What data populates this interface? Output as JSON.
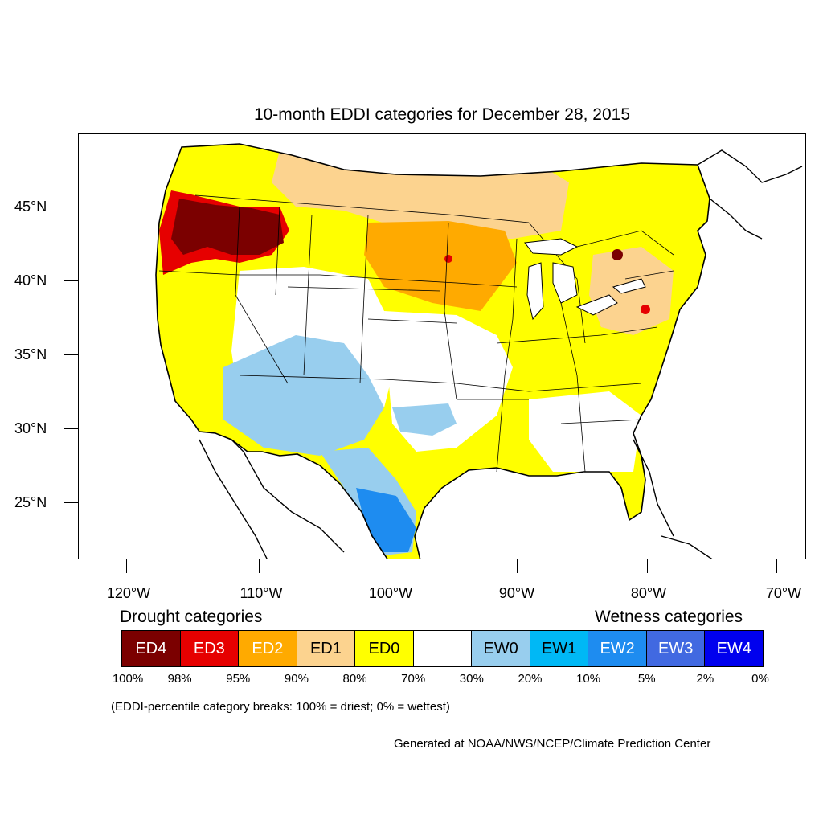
{
  "title": "10-month EDDI categories for December 28, 2015",
  "lat_labels": [
    "45°N",
    "40°N",
    "35°N",
    "30°N",
    "25°N"
  ],
  "lon_labels": [
    "120°W",
    "110°W",
    "100°W",
    "90°W",
    "80°W",
    "70°W"
  ],
  "legend": {
    "drought_heading": "Drought categories",
    "wetness_heading": "Wetness categories",
    "categories": [
      {
        "label": "ED4",
        "color": "#7b0000",
        "text_color": "#ffffff"
      },
      {
        "label": "ED3",
        "color": "#e60000",
        "text_color": "#ffffff"
      },
      {
        "label": "ED2",
        "color": "#ffaa00",
        "text_color": "#ffffff"
      },
      {
        "label": "ED1",
        "color": "#fcd38f",
        "text_color": "#000000"
      },
      {
        "label": "ED0",
        "color": "#ffff00",
        "text_color": "#000000"
      },
      {
        "label": "",
        "color": "#ffffff",
        "text_color": "#000000"
      },
      {
        "label": "EW0",
        "color": "#98ceee",
        "text_color": "#000000"
      },
      {
        "label": "EW1",
        "color": "#00b8f5",
        "text_color": "#000000"
      },
      {
        "label": "EW2",
        "color": "#1e8cf0",
        "text_color": "#ffffff"
      },
      {
        "label": "EW3",
        "color": "#4169e1",
        "text_color": "#ffffff"
      },
      {
        "label": "EW4",
        "color": "#0000ee",
        "text_color": "#ffffff"
      }
    ],
    "breaks": [
      "100%",
      "98%",
      "95%",
      "90%",
      "80%",
      "70%",
      "30%",
      "20%",
      "10%",
      "5%",
      "2%",
      "0%"
    ]
  },
  "note": "(EDDI-percentile category breaks: 100% = driest; 0% = wettest)",
  "credit": "Generated at NOAA/NWS/NCEP/Climate Prediction Center"
}
